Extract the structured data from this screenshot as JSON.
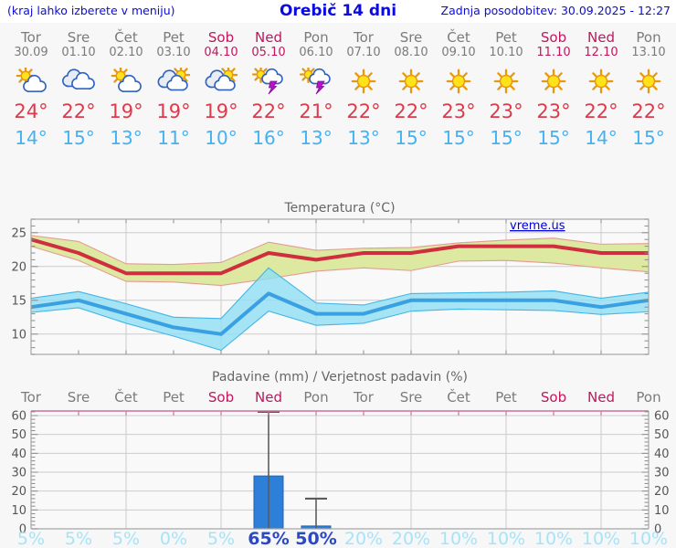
{
  "header": {
    "hint": "(kraj lahko izberete v meniju)",
    "title": "Orebič 14 dni",
    "updated": "Zadnja posodobitev: 30.09.2025 - 12:27"
  },
  "colors": {
    "header_blue": "#0b0be0",
    "day_gray": "#7b7b7b",
    "weekend_red": "#c0175d",
    "high_temp_red": "#dd3a4a",
    "low_temp_blue": "#46b1f0",
    "title_gray": "#666666",
    "axis_label_gray": "#555555",
    "grid_gray": "#cccccc",
    "border_gray": "#a6a6a6",
    "tick_gray": "#8a8a8a",
    "precip_top_border": "#cf6f9b",
    "bar_blue": "#2e7fd8",
    "whisker_gray": "#5c5c5c",
    "prob_light_cyan": "#a5e4f8",
    "prob_dark_blue": "#2b49c6",
    "watermark_blue": "#0000dd"
  },
  "days": [
    {
      "name": "Tor",
      "date": "30.09",
      "weekend": false,
      "icon": "partly-cloudy",
      "high": "24°",
      "low": "14°"
    },
    {
      "name": "Sre",
      "date": "01.10",
      "weekend": false,
      "icon": "cloudy",
      "high": "22°",
      "low": "15°"
    },
    {
      "name": "Čet",
      "date": "02.10",
      "weekend": false,
      "icon": "partly-cloudy",
      "high": "19°",
      "low": "13°"
    },
    {
      "name": "Pet",
      "date": "03.10",
      "weekend": false,
      "icon": "mostly-cloudy",
      "high": "19°",
      "low": "11°"
    },
    {
      "name": "Sob",
      "date": "04.10",
      "weekend": true,
      "icon": "mostly-cloudy",
      "high": "19°",
      "low": "10°"
    },
    {
      "name": "Ned",
      "date": "05.10",
      "weekend": true,
      "icon": "thunderstorm",
      "high": "22°",
      "low": "16°"
    },
    {
      "name": "Pon",
      "date": "06.10",
      "weekend": false,
      "icon": "thunderstorm",
      "high": "21°",
      "low": "13°"
    },
    {
      "name": "Tor",
      "date": "07.10",
      "weekend": false,
      "icon": "sunny",
      "high": "22°",
      "low": "13°"
    },
    {
      "name": "Sre",
      "date": "08.10",
      "weekend": false,
      "icon": "sunny",
      "high": "22°",
      "low": "15°"
    },
    {
      "name": "Čet",
      "date": "09.10",
      "weekend": false,
      "icon": "sunny",
      "high": "23°",
      "low": "15°"
    },
    {
      "name": "Pet",
      "date": "10.10",
      "weekend": false,
      "icon": "sunny",
      "high": "23°",
      "low": "15°"
    },
    {
      "name": "Sob",
      "date": "11.10",
      "weekend": true,
      "icon": "sunny",
      "high": "23°",
      "low": "15°"
    },
    {
      "name": "Ned",
      "date": "12.10",
      "weekend": true,
      "icon": "sunny",
      "high": "22°",
      "low": "14°"
    },
    {
      "name": "Pon",
      "date": "13.10",
      "weekend": false,
      "icon": "sunny",
      "high": "22°",
      "low": "15°"
    }
  ],
  "chart_data": [
    {
      "type": "area",
      "title": "Temperatura (°C)",
      "watermark": "vreme.us",
      "ylim": [
        7,
        27
      ],
      "yticks": [
        10,
        15,
        20,
        25
      ],
      "grid_day_indexes": [
        2,
        4,
        6,
        8,
        10,
        12
      ],
      "categories": [
        "Tor",
        "Sre",
        "Čet",
        "Pet",
        "Sob",
        "Ned",
        "Pon",
        "Tor",
        "Sre",
        "Čet",
        "Pet",
        "Sob",
        "Ned",
        "Pon"
      ],
      "series": [
        {
          "name": "max-temp",
          "values": [
            24,
            22,
            19,
            19,
            19,
            22,
            21,
            22,
            22,
            23,
            23,
            23,
            22,
            22
          ],
          "upper": [
            24.6,
            23.7,
            20.4,
            20.3,
            20.6,
            23.6,
            22.4,
            22.7,
            22.8,
            23.5,
            23.9,
            24.2,
            23.3,
            23.4
          ],
          "lower": [
            23.0,
            20.9,
            17.8,
            17.7,
            17.2,
            18.2,
            19.3,
            19.8,
            19.4,
            20.8,
            20.9,
            20.5,
            19.8,
            19.2
          ],
          "line_color": "#cf2e3f",
          "band_color": "#dde9a0",
          "edge_color": "#e59a93",
          "band_opacity": 1
        },
        {
          "name": "min-temp",
          "values": [
            14,
            15,
            13,
            11,
            10,
            16,
            13,
            13,
            15,
            15,
            15,
            15,
            14,
            15
          ],
          "upper": [
            15.3,
            16.3,
            14.5,
            12.5,
            12.3,
            19.8,
            14.6,
            14.3,
            16.0,
            16.1,
            16.2,
            16.4,
            15.3,
            16.2
          ],
          "lower": [
            13.2,
            13.9,
            11.6,
            9.7,
            7.6,
            13.4,
            11.3,
            11.6,
            13.4,
            13.7,
            13.6,
            13.5,
            12.9,
            13.3
          ],
          "line_color": "#3aa0e2",
          "band_color": "#8edff4",
          "edge_color": "#44b5e7",
          "band_opacity": 0.8
        }
      ]
    },
    {
      "type": "bar",
      "title": "Padavine (mm) / Verjetnost padavin (%)",
      "categories": [
        "Tor",
        "Sre",
        "Čet",
        "Pet",
        "Sob",
        "Ned",
        "Pon",
        "Tor",
        "Sre",
        "Čet",
        "Pet",
        "Sob",
        "Ned",
        "Pon"
      ],
      "weekend": [
        false,
        false,
        false,
        false,
        true,
        true,
        false,
        false,
        false,
        false,
        false,
        true,
        true,
        false
      ],
      "values": [
        0,
        0,
        0,
        0,
        0,
        28,
        1.5,
        0,
        0,
        0,
        0,
        0,
        0,
        0
      ],
      "whisker_high": [
        0,
        0,
        0,
        0,
        0,
        63,
        16,
        0,
        0,
        0,
        0,
        0,
        0,
        0
      ],
      "probabilities": [
        "5%",
        "5%",
        "5%",
        "0%",
        "5%",
        "65%",
        "50%",
        "20%",
        "20%",
        "10%",
        "10%",
        "10%",
        "10%",
        "10%"
      ],
      "prob_highlight": [
        false,
        false,
        false,
        false,
        false,
        true,
        true,
        false,
        false,
        false,
        false,
        false,
        false,
        false
      ],
      "ylim": [
        0,
        62
      ],
      "yticks": [
        0,
        10,
        20,
        30,
        40,
        50,
        60
      ],
      "grid_day_indexes": [
        2,
        4,
        6,
        8,
        10,
        12
      ]
    }
  ]
}
